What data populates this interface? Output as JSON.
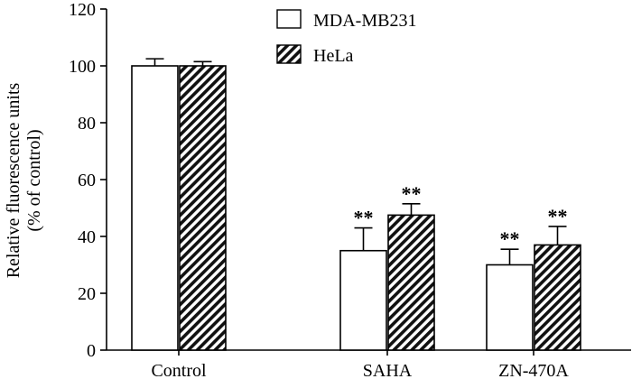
{
  "chart_data": {
    "type": "bar",
    "title": "",
    "xlabel": "",
    "ylabel_lines": [
      "Relative fluorescence units",
      "(% of control)"
    ],
    "ylim": [
      0,
      120
    ],
    "yticks": [
      0,
      20,
      40,
      60,
      80,
      100,
      120
    ],
    "ytick_labels": [
      "0",
      "20",
      "40",
      "60",
      "80",
      "100",
      "120"
    ],
    "categories": [
      "Control",
      "SAHA",
      "ZN-470A"
    ],
    "series": [
      {
        "name": "MDA-MB231",
        "pattern": "open",
        "values": [
          100,
          35,
          30
        ],
        "errors": [
          2.5,
          8,
          5.5
        ],
        "annotations": [
          "",
          "**",
          "**"
        ]
      },
      {
        "name": "HeLa",
        "pattern": "hatched",
        "values": [
          100,
          47.5,
          37
        ],
        "errors": [
          1.5,
          4,
          6.5
        ],
        "annotations": [
          "",
          "**",
          "**"
        ]
      }
    ],
    "legend": {
      "position": "top-center"
    }
  }
}
